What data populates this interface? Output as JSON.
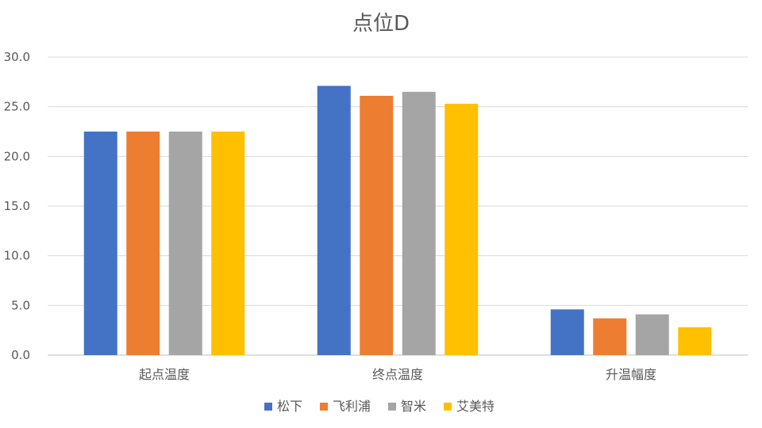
{
  "chart_data": {
    "type": "bar",
    "title": "点位D",
    "xlabel": "",
    "ylabel": "",
    "ylim": [
      0,
      30
    ],
    "yticks": [
      "0.0",
      "5.0",
      "10.0",
      "15.0",
      "20.0",
      "25.0",
      "30.0"
    ],
    "categories": [
      "起点温度",
      "终点温度",
      "升温幅度"
    ],
    "series": [
      {
        "name": "松下",
        "color": "#4472C4",
        "values": [
          22.5,
          27.1,
          4.6
        ]
      },
      {
        "name": "飞利浦",
        "color": "#ED7D31",
        "values": [
          22.5,
          26.1,
          3.7
        ]
      },
      {
        "name": "智米",
        "color": "#A5A5A5",
        "values": [
          22.5,
          26.5,
          4.1
        ]
      },
      {
        "name": "艾美特",
        "color": "#FFC000",
        "values": [
          22.5,
          25.3,
          2.8
        ]
      }
    ],
    "grid": true,
    "legend_position": "bottom"
  }
}
